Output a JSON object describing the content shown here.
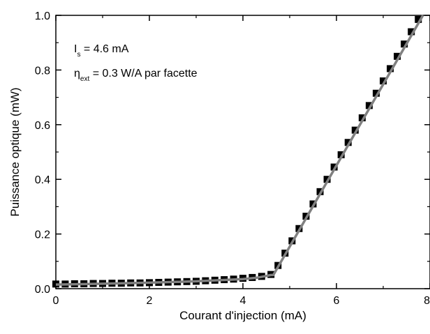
{
  "chart_data": {
    "type": "scatter",
    "title": "",
    "xlabel": "Courant d'injection (mA)",
    "ylabel": "Puissance optique (mW)",
    "xlim": [
      0,
      8
    ],
    "ylim": [
      0.0,
      1.0
    ],
    "xticks": [
      "0",
      "2",
      "4",
      "6",
      "8"
    ],
    "yticks": [
      "0.0",
      "0.2",
      "0.4",
      "0.6",
      "0.8",
      "1.0"
    ],
    "grid": false,
    "annotations": {
      "threshold": {
        "symbol": "I",
        "subscript": "s",
        "text": " = 4.6 mA"
      },
      "efficiency": {
        "symbol": "η",
        "subscript": "ext",
        "text": " = 0.3 W/A par facette"
      }
    },
    "series": [
      {
        "kind": "measured",
        "marker": "square",
        "color": "#000000",
        "x": [
          0.0,
          0.2,
          0.4,
          0.6,
          0.8,
          1.0,
          1.2,
          1.4,
          1.6,
          1.8,
          2.0,
          2.2,
          2.4,
          2.6,
          2.8,
          3.0,
          3.2,
          3.4,
          3.6,
          3.8,
          4.0,
          4.2,
          4.4,
          4.6,
          4.75,
          4.9,
          5.05,
          5.2,
          5.35,
          5.5,
          5.65,
          5.8,
          5.95,
          6.1,
          6.25,
          6.4,
          6.55,
          6.7,
          6.85,
          7.0,
          7.15,
          7.3,
          7.45,
          7.6,
          7.75
        ],
        "y": [
          0.017,
          0.017,
          0.018,
          0.018,
          0.019,
          0.019,
          0.02,
          0.02,
          0.021,
          0.021,
          0.022,
          0.023,
          0.024,
          0.025,
          0.026,
          0.027,
          0.029,
          0.031,
          0.033,
          0.035,
          0.038,
          0.041,
          0.045,
          0.052,
          0.085,
          0.13,
          0.175,
          0.22,
          0.265,
          0.31,
          0.355,
          0.4,
          0.445,
          0.49,
          0.535,
          0.58,
          0.625,
          0.67,
          0.715,
          0.76,
          0.805,
          0.85,
          0.895,
          0.94,
          0.985
        ]
      },
      {
        "kind": "fit",
        "color": "#808080",
        "x": [
          0.0,
          1.0,
          2.0,
          3.0,
          4.0,
          4.3,
          4.6,
          4.65,
          7.85
        ],
        "y": [
          0.015,
          0.018,
          0.022,
          0.027,
          0.035,
          0.04,
          0.05,
          0.05,
          1.0
        ]
      }
    ]
  }
}
